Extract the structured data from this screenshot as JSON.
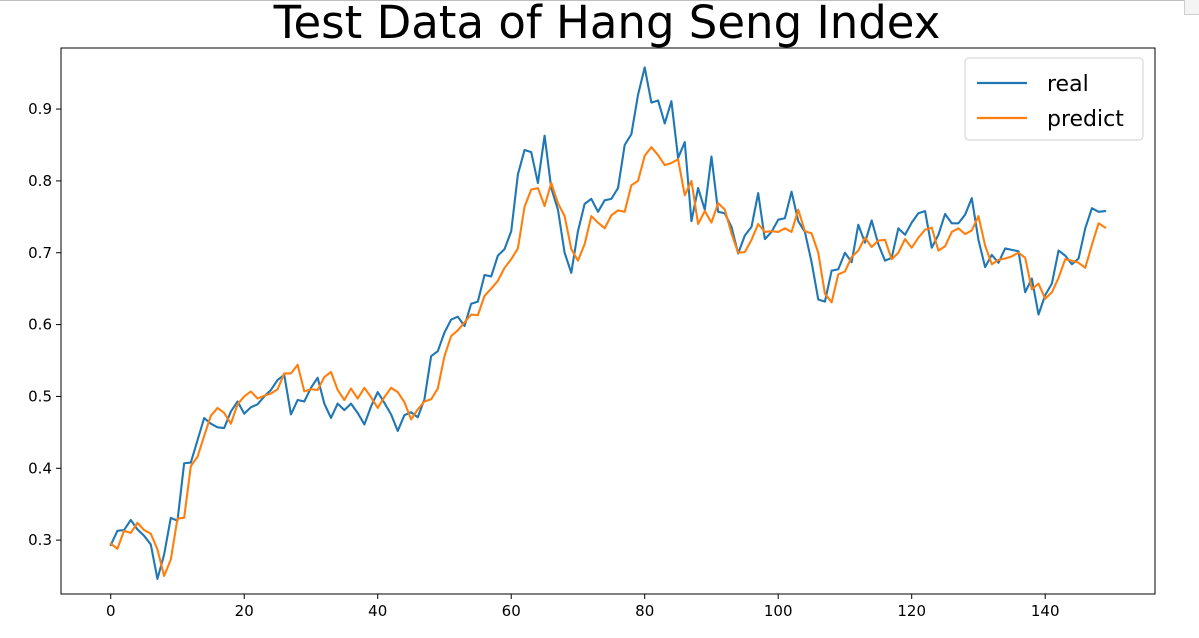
{
  "chart_data": {
    "type": "line",
    "title": "Test Data of Hang Seng Index",
    "xlabel": "",
    "ylabel": "",
    "xlim": [
      -7.45,
      156.45
    ],
    "ylim": [
      0.225,
      0.985
    ],
    "xticks": [
      0,
      20,
      40,
      60,
      80,
      100,
      120,
      140
    ],
    "xtick_labels": [
      "0",
      "20",
      "40",
      "60",
      "80",
      "100",
      "120",
      "140"
    ],
    "yticks": [
      0.3,
      0.4,
      0.5,
      0.6,
      0.7,
      0.8,
      0.9
    ],
    "ytick_labels": [
      "0.3",
      "0.4",
      "0.5",
      "0.6",
      "0.7",
      "0.8",
      "0.9"
    ],
    "grid": false,
    "legend_position": "top-right",
    "series": [
      {
        "name": "real",
        "color": "#1f77b4",
        "values": [
          0.293,
          0.313,
          0.314,
          0.328,
          0.315,
          0.306,
          0.294,
          0.246,
          0.28,
          0.331,
          0.327,
          0.407,
          0.408,
          0.439,
          0.47,
          0.462,
          0.457,
          0.456,
          0.479,
          0.493,
          0.476,
          0.485,
          0.489,
          0.5,
          0.509,
          0.523,
          0.53,
          0.475,
          0.495,
          0.493,
          0.512,
          0.526,
          0.49,
          0.47,
          0.49,
          0.481,
          0.49,
          0.477,
          0.461,
          0.486,
          0.506,
          0.491,
          0.475,
          0.452,
          0.474,
          0.478,
          0.471,
          0.496,
          0.556,
          0.563,
          0.589,
          0.607,
          0.611,
          0.598,
          0.629,
          0.632,
          0.669,
          0.667,
          0.696,
          0.705,
          0.73,
          0.809,
          0.843,
          0.84,
          0.797,
          0.863,
          0.79,
          0.76,
          0.7,
          0.672,
          0.73,
          0.768,
          0.775,
          0.757,
          0.773,
          0.775,
          0.79,
          0.85,
          0.865,
          0.92,
          0.958,
          0.909,
          0.912,
          0.88,
          0.911,
          0.832,
          0.854,
          0.744,
          0.79,
          0.76,
          0.834,
          0.757,
          0.755,
          0.736,
          0.699,
          0.724,
          0.736,
          0.783,
          0.719,
          0.729,
          0.746,
          0.748,
          0.785,
          0.744,
          0.729,
          0.687,
          0.635,
          0.632,
          0.675,
          0.677,
          0.7,
          0.687,
          0.739,
          0.714,
          0.745,
          0.712,
          0.689,
          0.693,
          0.734,
          0.725,
          0.742,
          0.755,
          0.758,
          0.707,
          0.725,
          0.754,
          0.741,
          0.741,
          0.753,
          0.776,
          0.718,
          0.68,
          0.697,
          0.686,
          0.706,
          0.704,
          0.702,
          0.645,
          0.664,
          0.614,
          0.641,
          0.657,
          0.703,
          0.696,
          0.684,
          0.692,
          0.734,
          0.762,
          0.757,
          0.758
        ]
      },
      {
        "name": "predict",
        "color": "#ff7f0e",
        "values": [
          0.295,
          0.288,
          0.313,
          0.31,
          0.324,
          0.314,
          0.309,
          0.287,
          0.25,
          0.273,
          0.33,
          0.331,
          0.403,
          0.416,
          0.445,
          0.473,
          0.484,
          0.477,
          0.462,
          0.489,
          0.5,
          0.507,
          0.497,
          0.501,
          0.504,
          0.51,
          0.532,
          0.532,
          0.544,
          0.507,
          0.51,
          0.509,
          0.527,
          0.534,
          0.509,
          0.495,
          0.511,
          0.497,
          0.512,
          0.499,
          0.484,
          0.499,
          0.512,
          0.506,
          0.492,
          0.468,
          0.482,
          0.493,
          0.496,
          0.511,
          0.556,
          0.584,
          0.592,
          0.603,
          0.614,
          0.613,
          0.64,
          0.65,
          0.661,
          0.679,
          0.691,
          0.706,
          0.764,
          0.788,
          0.79,
          0.765,
          0.797,
          0.769,
          0.751,
          0.705,
          0.689,
          0.712,
          0.751,
          0.742,
          0.734,
          0.752,
          0.759,
          0.757,
          0.794,
          0.8,
          0.835,
          0.847,
          0.836,
          0.822,
          0.825,
          0.83,
          0.78,
          0.8,
          0.74,
          0.758,
          0.742,
          0.769,
          0.76,
          0.727,
          0.7,
          0.701,
          0.718,
          0.74,
          0.729,
          0.73,
          0.729,
          0.734,
          0.729,
          0.76,
          0.73,
          0.727,
          0.7,
          0.643,
          0.631,
          0.67,
          0.674,
          0.694,
          0.703,
          0.721,
          0.708,
          0.717,
          0.718,
          0.691,
          0.7,
          0.719,
          0.707,
          0.721,
          0.732,
          0.735,
          0.703,
          0.709,
          0.729,
          0.734,
          0.726,
          0.731,
          0.751,
          0.71,
          0.684,
          0.69,
          0.692,
          0.695,
          0.7,
          0.693,
          0.649,
          0.657,
          0.636,
          0.645,
          0.665,
          0.691,
          0.689,
          0.686,
          0.679,
          0.711,
          0.741,
          0.735
        ]
      }
    ]
  }
}
